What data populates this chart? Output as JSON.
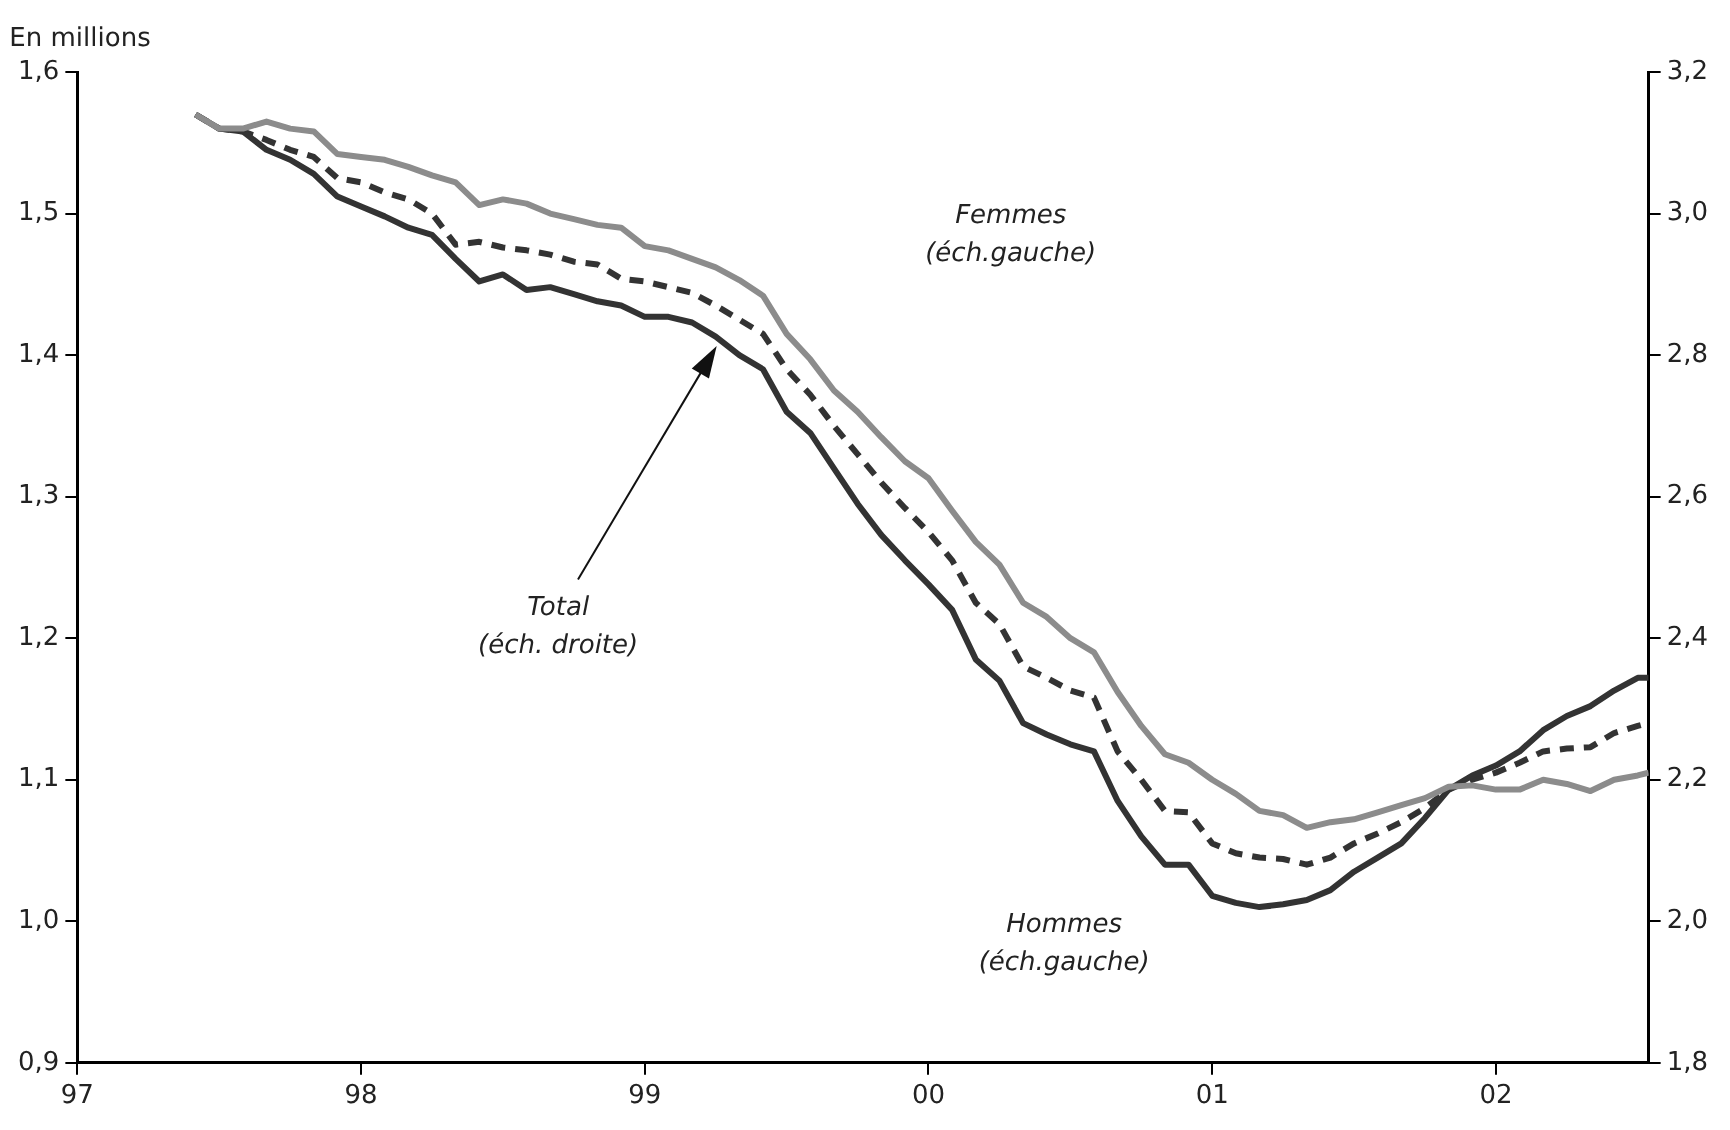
{
  "chart_data": {
    "type": "line",
    "ylabel": "En millions",
    "x": [
      "1997-06",
      "1997-07",
      "1997-08",
      "1997-09",
      "1997-10",
      "1997-11",
      "1997-12",
      "1998-01",
      "1998-02",
      "1998-03",
      "1998-04",
      "1998-05",
      "1998-06",
      "1998-07",
      "1998-08",
      "1998-09",
      "1998-10",
      "1998-11",
      "1998-12",
      "1999-01",
      "1999-02",
      "1999-03",
      "1999-04",
      "1999-05",
      "1999-06",
      "1999-07",
      "1999-08",
      "1999-09",
      "1999-10",
      "1999-11",
      "1999-12",
      "2000-01",
      "2000-02",
      "2000-03",
      "2000-04",
      "2000-05",
      "2000-06",
      "2000-07",
      "2000-08",
      "2000-09",
      "2000-10",
      "2000-11",
      "2000-12",
      "2001-01",
      "2001-02",
      "2001-03",
      "2001-04",
      "2001-05",
      "2001-06",
      "2001-07",
      "2001-08",
      "2001-09",
      "2001-10",
      "2001-11",
      "2001-12",
      "2002-01",
      "2002-02",
      "2002-03",
      "2002-04",
      "2002-05",
      "2002-06",
      "2002-07",
      "2002-07-15"
    ],
    "series": [
      {
        "color": "#8c8c8c",
        "line_style": "solid",
        "values": [
          1.57,
          1.56,
          1.56,
          1.565,
          1.56,
          1.558,
          1.542,
          1.54,
          1.538,
          1.533,
          1.527,
          1.522,
          1.506,
          1.51,
          1.507,
          1.5,
          1.496,
          1.492,
          1.49,
          1.477,
          1.474,
          1.468,
          1.462,
          1.453,
          1.442,
          1.415,
          1.397,
          1.375,
          1.36,
          1.342,
          1.325,
          1.313,
          1.29,
          1.268,
          1.252,
          1.225,
          1.215,
          1.2,
          1.19,
          1.162,
          1.138,
          1.118,
          1.112,
          1.1,
          1.09,
          1.078,
          1.075,
          1.066,
          1.07,
          1.072,
          1.077,
          1.082,
          1.087,
          1.095,
          1.096,
          1.093,
          1.093,
          1.1,
          1.097,
          1.092,
          1.1,
          1.103,
          1.105
        ]
      },
      {
        "color": "#333333",
        "line_style": "solid",
        "values": [
          1.57,
          1.56,
          1.558,
          1.545,
          1.538,
          1.528,
          1.512,
          1.505,
          1.498,
          1.49,
          1.485,
          1.468,
          1.452,
          1.457,
          1.446,
          1.448,
          1.443,
          1.438,
          1.435,
          1.427,
          1.427,
          1.423,
          1.413,
          1.4,
          1.39,
          1.36,
          1.345,
          1.32,
          1.295,
          1.273,
          1.255,
          1.238,
          1.22,
          1.185,
          1.17,
          1.14,
          1.132,
          1.125,
          1.12,
          1.085,
          1.06,
          1.04,
          1.04,
          1.018,
          1.013,
          1.01,
          1.012,
          1.015,
          1.022,
          1.035,
          1.045,
          1.055,
          1.073,
          1.093,
          1.103,
          1.11,
          1.12,
          1.135,
          1.145,
          1.152,
          1.163,
          1.172,
          1.172
        ]
      },
      {
        "color": "#333333",
        "line_style": "dashed",
        "axis": "y2",
        "values": [
          3.14,
          3.12,
          3.116,
          3.104,
          3.09,
          3.08,
          3.05,
          3.044,
          3.03,
          3.02,
          3.0,
          2.956,
          2.96,
          2.952,
          2.948,
          2.942,
          2.932,
          2.928,
          2.908,
          2.904,
          2.896,
          2.888,
          2.87,
          2.85,
          2.83,
          2.78,
          2.744,
          2.7,
          2.66,
          2.62,
          2.584,
          2.55,
          2.51,
          2.45,
          2.42,
          2.36,
          2.344,
          2.326,
          2.316,
          2.24,
          2.2,
          2.156,
          2.154,
          2.11,
          2.096,
          2.09,
          2.088,
          2.08,
          2.09,
          2.11,
          2.124,
          2.14,
          2.16,
          2.186,
          2.2,
          2.21,
          2.224,
          2.24,
          2.244,
          2.246,
          2.266,
          2.276,
          2.28
        ]
      }
    ],
    "xlim": [
      "1997",
      "2002-07-15"
    ],
    "xticks": [
      {
        "value": "1997",
        "label": "97"
      },
      {
        "value": "1998",
        "label": "98"
      },
      {
        "value": "1999",
        "label": "99"
      },
      {
        "value": "2000",
        "label": "00"
      },
      {
        "value": "2001",
        "label": "01"
      },
      {
        "value": "2002",
        "label": "02"
      }
    ],
    "ylim": [
      0.9,
      1.6
    ],
    "yticks": [
      {
        "value": 0.9,
        "label": "0,9"
      },
      {
        "value": 1.0,
        "label": "1,0"
      },
      {
        "value": 1.1,
        "label": "1,1"
      },
      {
        "value": 1.2,
        "label": "1,2"
      },
      {
        "value": 1.3,
        "label": "1,3"
      },
      {
        "value": 1.4,
        "label": "1,4"
      },
      {
        "value": 1.5,
        "label": "1,5"
      },
      {
        "value": 1.6,
        "label": "1,6"
      }
    ],
    "y2lim": [
      1.8,
      3.2
    ],
    "y2ticks": [
      {
        "value": 1.8,
        "label": "1,8"
      },
      {
        "value": 2.0,
        "label": "2,0"
      },
      {
        "value": 2.2,
        "label": "2,2"
      },
      {
        "value": 2.4,
        "label": "2,4"
      },
      {
        "value": 2.6,
        "label": "2,6"
      },
      {
        "value": 2.8,
        "label": "2,8"
      },
      {
        "value": 3.0,
        "label": "3,0"
      },
      {
        "value": 3.2,
        "label": "3,2"
      }
    ],
    "grid": false,
    "legend": false,
    "annotations": [
      "Femmes\n(éch.gauche)",
      "Total\n(éch. droite)",
      "Hommes\n(éch.gauche)"
    ]
  }
}
